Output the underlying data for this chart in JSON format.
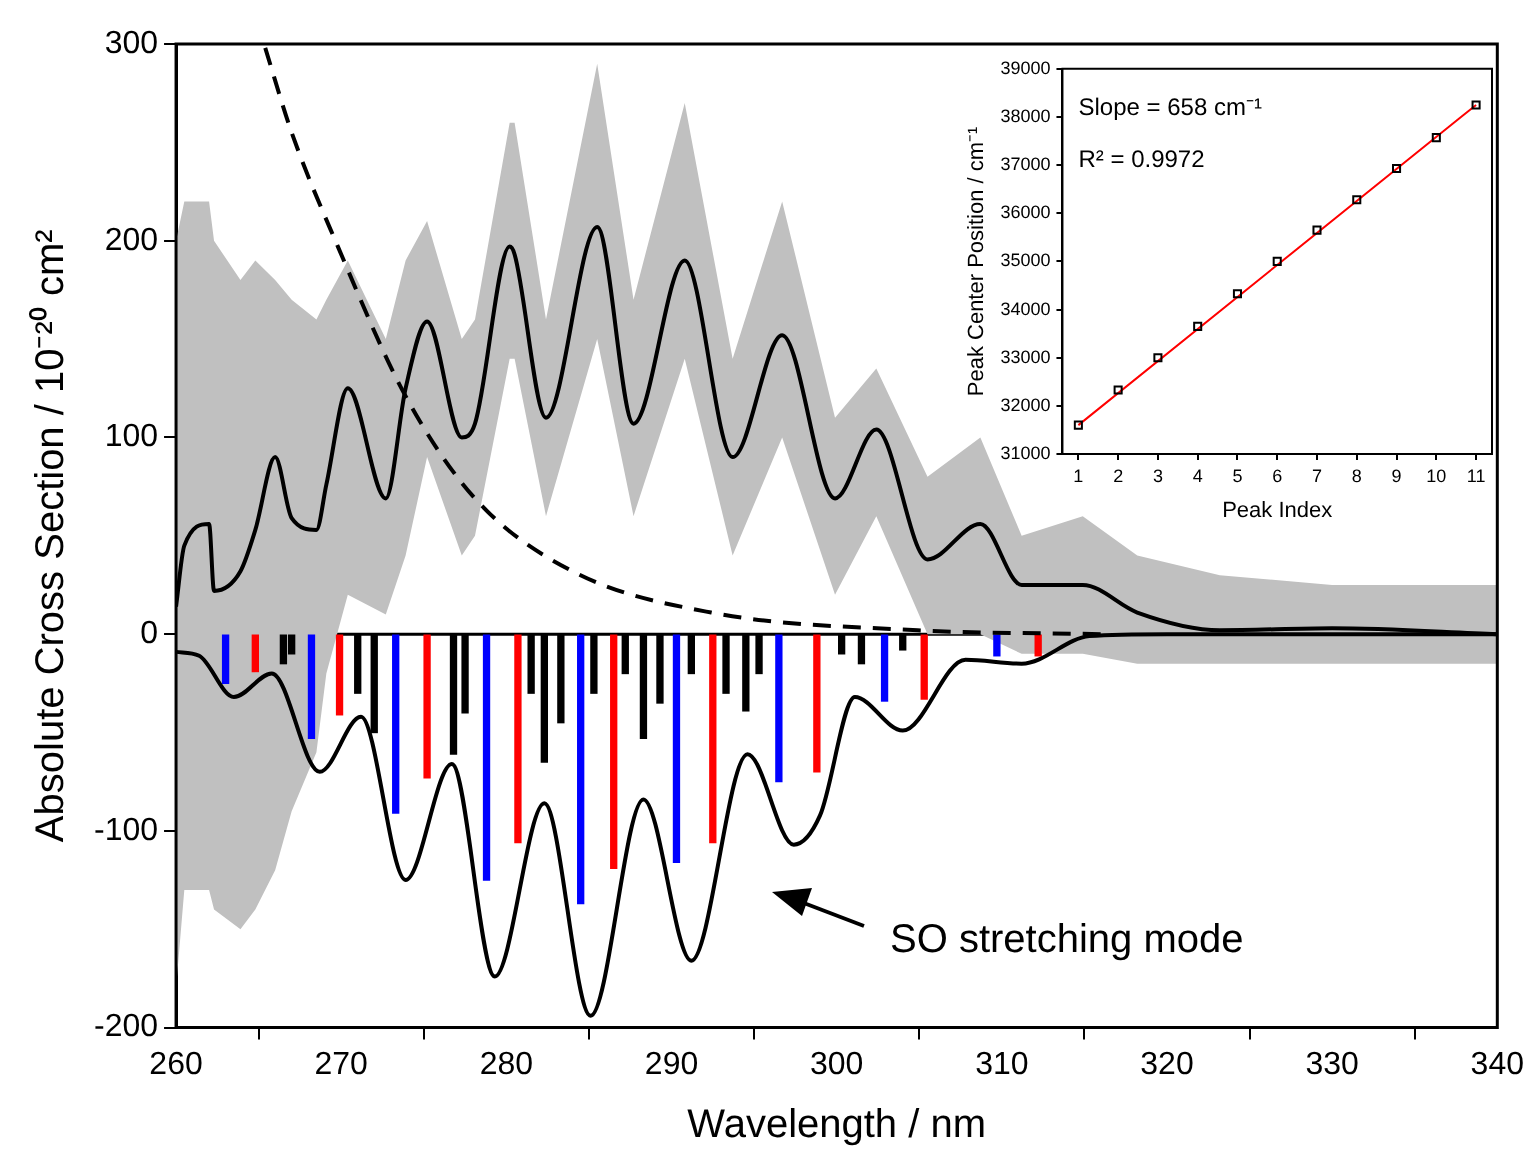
{
  "chart_data": [
    {
      "type": "line",
      "xlabel": "Wavelength / nm",
      "ylabel": "Absolute Cross Section / 10⁻²⁰ cm²",
      "xlim": [
        260,
        340
      ],
      "xticks": [
        260,
        270,
        280,
        290,
        300,
        310,
        320,
        330,
        340
      ],
      "ylim": [
        -200,
        300
      ],
      "yticks": [
        -200,
        -100,
        0,
        100,
        200,
        300
      ],
      "grid": false,
      "legend": false,
      "marker": "none",
      "ref_lines": [
        {
          "axis": "y",
          "value": 0,
          "color": "#000000"
        }
      ],
      "annotations": [
        "SO stretching mode"
      ],
      "series": [
        {
          "color": "#000000",
          "x": [
            260,
            260.5,
            262,
            262.3,
            263.9,
            264.8,
            266,
            267,
            268.5,
            269.1,
            270.4,
            272.7,
            273.9,
            275.2,
            277.3,
            278.1,
            280.2,
            280.5,
            282.4,
            285.5,
            287.7,
            290.8,
            293.7,
            296.7,
            299.9,
            302.4,
            305.5,
            308.7,
            311.2,
            314.9,
            318.2,
            323.2,
            330,
            340
          ],
          "values": [
            14,
            45,
            56,
            22,
            32,
            53,
            90,
            59,
            53,
            76,
            125,
            69,
            125,
            159,
            100,
            107,
            197,
            193,
            110,
            207,
            107,
            190,
            90,
            152,
            69,
            104,
            38,
            56,
            25,
            25,
            11,
            2,
            3,
            0
          ],
          "lower": [
            -180,
            -130,
            -130,
            -140,
            -150,
            -140,
            -120,
            -90,
            -60,
            -20,
            20,
            10,
            40,
            90,
            40,
            50,
            140,
            140,
            60,
            150,
            60,
            140,
            40,
            100,
            20,
            60,
            0,
            0,
            -10,
            -10,
            -15,
            -15,
            -15,
            -15
          ],
          "upper": [
            200,
            220,
            220,
            200,
            180,
            190,
            180,
            170,
            160,
            170,
            190,
            150,
            190,
            210,
            150,
            160,
            260,
            260,
            160,
            290,
            170,
            270,
            140,
            220,
            110,
            135,
            80,
            100,
            50,
            60,
            40,
            30,
            25,
            25
          ]
        },
        {
          "color": "#000000",
          "line_style": "dashed",
          "x": [
            265.4,
            267,
            269.8,
            273.9,
            278.1,
            284,
            292.4,
            304.9,
            316
          ],
          "values": [
            298,
            255,
            197,
            121,
            69,
            32,
            11,
            2,
            0
          ]
        },
        {
          "type": "bar",
          "x": [
            263,
            264.8,
            266.5,
            267,
            268.2,
            269.9,
            271,
            272,
            273.3,
            275.2,
            276.8,
            277.5,
            278.8,
            280.7,
            281.5,
            282.3,
            283.3,
            284.5,
            285.3,
            286.5,
            287.2,
            288.3,
            289.3,
            290.3,
            291.2,
            292.5,
            293.3,
            294.5,
            295.3,
            296.5,
            298.8,
            300.3,
            301.5,
            302.9,
            304,
            305.3,
            309.7,
            312.2
          ],
          "values": [
            -25,
            -19,
            -15,
            -10,
            -53,
            -41,
            -30,
            -50,
            -91,
            -73,
            -61,
            -40,
            -125,
            -106,
            -30,
            -65,
            -45,
            -137,
            -30,
            -119,
            -20,
            -53,
            -35,
            -116,
            -20,
            -106,
            -30,
            -39,
            -20,
            -75,
            -70,
            -10,
            -15,
            -34,
            -8,
            -33,
            -11,
            -11
          ],
          "colors": [
            "#0000ff",
            "#ff0000",
            "#000000",
            "#000000",
            "#0000ff",
            "#ff0000",
            "#000000",
            "#000000",
            "#0000ff",
            "#ff0000",
            "#000000",
            "#000000",
            "#0000ff",
            "#ff0000",
            "#000000",
            "#000000",
            "#000000",
            "#0000ff",
            "#000000",
            "#ff0000",
            "#000000",
            "#000000",
            "#000000",
            "#0000ff",
            "#000000",
            "#ff0000",
            "#000000",
            "#000000",
            "#000000",
            "#0000ff",
            "#ff0000",
            "#000000",
            "#000000",
            "#0000ff",
            "#000000",
            "#ff0000",
            "#0000ff",
            "#ff0000"
          ]
        },
        {
          "color": "#000000",
          "x": [
            260,
            261.4,
            263.5,
            265.8,
            268.7,
            271.2,
            273.9,
            276.7,
            279.3,
            282.3,
            285.1,
            288.3,
            291.2,
            294.6,
            297.4,
            299,
            301.1,
            304,
            307.8,
            311.2,
            315.3,
            320,
            340
          ],
          "values": [
            -9,
            -11,
            -32,
            -20,
            -70,
            -42,
            -125,
            -66,
            -174,
            -86,
            -194,
            -84,
            -166,
            -61,
            -107,
            -92,
            -32,
            -49,
            -13,
            -15,
            -1,
            0,
            0
          ]
        }
      ]
    },
    {
      "type": "scatter",
      "xlabel": "Peak Index",
      "ylabel": "Peak Center Position / cm⁻¹",
      "xlim": [
        0.6,
        11.4
      ],
      "xticks": [
        1,
        2,
        3,
        4,
        5,
        6,
        7,
        8,
        9,
        10,
        11
      ],
      "ylim": [
        31000,
        39000
      ],
      "yticks": [
        31000,
        32000,
        33000,
        34000,
        35000,
        36000,
        37000,
        38000,
        39000
      ],
      "grid": false,
      "legend": false,
      "annotations": [
        "Slope = 658 cm⁻¹",
        "R² = 0.9972"
      ],
      "series": [
        {
          "color": "#000000",
          "marker": "square",
          "x": [
            1,
            2,
            3,
            4,
            5,
            6,
            7,
            8,
            9,
            10,
            11
          ],
          "values": [
            31600,
            32330,
            33000,
            33650,
            34330,
            35000,
            35650,
            36280,
            36930,
            37570,
            38250
          ]
        },
        {
          "type": "line",
          "color": "#ff0000",
          "marker": "none",
          "x": [
            1,
            11
          ],
          "values": [
            31600,
            38250
          ]
        }
      ]
    }
  ]
}
